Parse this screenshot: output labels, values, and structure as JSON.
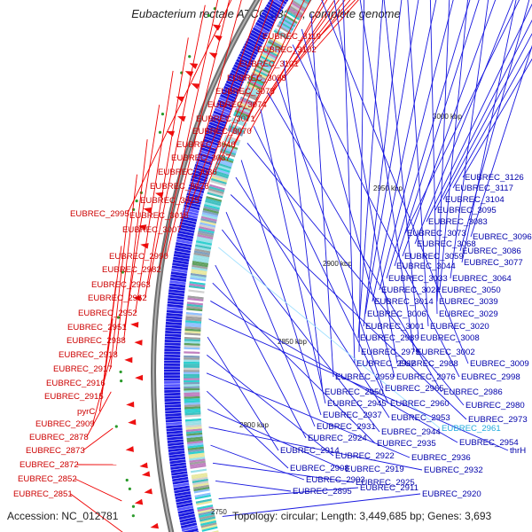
{
  "title": "Eubacterium rectale ATCC 33656, complete genome",
  "accession_text": "Accession: NC_012781",
  "summary_text": "Topology: circular; Length: 3,449,685 bp; Genes: 3,693",
  "kbp_labels": [
    "3000 kbp",
    "2950 kbp",
    "2900 kbp",
    "2850 kbp",
    "2800 kbp",
    "2750"
  ],
  "colors": {
    "red_label": "#cc0000",
    "blue_label": "#0000aa",
    "cyan_label": "#22aadd",
    "backbone": "#8a8a8a",
    "blue_arrows": "#1a1ae0",
    "red_arrows": "#ee1111"
  },
  "left_labels": [
    {
      "text": "EUBREC_3119",
      "color": "red"
    },
    {
      "text": "EUBREC_3102",
      "color": "red"
    },
    {
      "text": "EUBREC_3101",
      "color": "red"
    },
    {
      "text": "EUBREC_3098",
      "color": "red"
    },
    {
      "text": "EUBREC_3075",
      "color": "red"
    },
    {
      "text": "EUBREC_3074",
      "color": "red"
    },
    {
      "text": "EUBREC_3071",
      "color": "red"
    },
    {
      "text": "EUBREC_3070",
      "color": "red"
    },
    {
      "text": "EUBREC_3046",
      "color": "red"
    },
    {
      "text": "EUBREC_3037",
      "color": "red"
    },
    {
      "text": "EUBREC_3036",
      "color": "red"
    },
    {
      "text": "EUBREC_3026",
      "color": "red"
    },
    {
      "text": "EUBREC_3025",
      "color": "red"
    },
    {
      "text": "EUBREC_3016",
      "color": "red"
    },
    {
      "text": "EUBREC_2995",
      "color": "red"
    },
    {
      "text": "EUBREC_3007",
      "color": "red"
    },
    {
      "text": "EUBREC_2990",
      "color": "red"
    },
    {
      "text": "EUBREC_2982",
      "color": "red"
    },
    {
      "text": "EUBREC_2963",
      "color": "red"
    },
    {
      "text": "EUBREC_2962",
      "color": "red"
    },
    {
      "text": "EUBREC_2952",
      "color": "red"
    },
    {
      "text": "EUBREC_2951",
      "color": "red"
    },
    {
      "text": "EUBREC_2938",
      "color": "red"
    },
    {
      "text": "EUBREC_2918",
      "color": "red"
    },
    {
      "text": "EUBREC_2917",
      "color": "red"
    },
    {
      "text": "EUBREC_2916",
      "color": "red"
    },
    {
      "text": "EUBREC_2915",
      "color": "red"
    },
    {
      "text": "pyrC",
      "color": "red"
    },
    {
      "text": "EUBREC_2909",
      "color": "red"
    },
    {
      "text": "EUBREC_2878",
      "color": "red"
    },
    {
      "text": "EUBREC_2873",
      "color": "red"
    },
    {
      "text": "EUBREC_2872",
      "color": "red"
    },
    {
      "text": "EUBREC_2852",
      "color": "red"
    },
    {
      "text": "EUBREC_2851",
      "color": "red"
    }
  ],
  "right_labels": [
    {
      "text": "EUBREC_3126",
      "color": "blue"
    },
    {
      "text": "EUBREC_3117",
      "color": "blue"
    },
    {
      "text": "EUBREC_3104",
      "color": "blue"
    },
    {
      "text": "EUBREC_3095",
      "color": "blue"
    },
    {
      "text": "EUBREC_3083",
      "color": "blue"
    },
    {
      "text": "EUBREC_3073",
      "color": "blue"
    },
    {
      "text": "EUBREC_3096",
      "color": "blue"
    },
    {
      "text": "EUBREC_3068",
      "color": "blue"
    },
    {
      "text": "EUBREC_3086",
      "color": "blue"
    },
    {
      "text": "EUBREC_3059",
      "color": "blue"
    },
    {
      "text": "EUBREC_3077",
      "color": "blue"
    },
    {
      "text": "EUBREC_3044",
      "color": "blue"
    },
    {
      "text": "EUBREC_3033",
      "color": "blue"
    },
    {
      "text": "EUBREC_3064",
      "color": "blue"
    },
    {
      "text": "EUBREC_3024",
      "color": "blue"
    },
    {
      "text": "EUBREC_3050",
      "color": "blue"
    },
    {
      "text": "EUBREC_3014",
      "color": "blue"
    },
    {
      "text": "EUBREC_3039",
      "color": "blue"
    },
    {
      "text": "EUBREC_3006",
      "color": "blue"
    },
    {
      "text": "EUBREC_3029",
      "color": "blue"
    },
    {
      "text": "EUBREC_3001",
      "color": "blue"
    },
    {
      "text": "EUBREC_3020",
      "color": "blue"
    },
    {
      "text": "EUBREC_2989",
      "color": "blue"
    },
    {
      "text": "EUBREC_3008",
      "color": "blue"
    },
    {
      "text": "EUBREC_2979",
      "color": "blue"
    },
    {
      "text": "EUBREC_3002",
      "color": "blue"
    },
    {
      "text": "EUBREC_2967",
      "color": "blue"
    },
    {
      "text": "EUBREC_2988",
      "color": "blue"
    },
    {
      "text": "EUBREC_3009",
      "color": "blue"
    },
    {
      "text": "EUBREC_2959",
      "color": "blue"
    },
    {
      "text": "EUBREC_2976",
      "color": "blue"
    },
    {
      "text": "EUBREC_2998",
      "color": "blue"
    },
    {
      "text": "EUBREC_2950",
      "color": "blue"
    },
    {
      "text": "EUBREC_2965",
      "color": "blue"
    },
    {
      "text": "EUBREC_2986",
      "color": "blue"
    },
    {
      "text": "EUBREC_2945",
      "color": "blue"
    },
    {
      "text": "EUBREC_2960",
      "color": "blue"
    },
    {
      "text": "EUBREC_2980",
      "color": "blue"
    },
    {
      "text": "EUBREC_2937",
      "color": "blue"
    },
    {
      "text": "EUBREC_2953",
      "color": "blue"
    },
    {
      "text": "EUBREC_2973",
      "color": "blue"
    },
    {
      "text": "EUBREC_2931",
      "color": "blue"
    },
    {
      "text": "EUBREC_2944",
      "color": "blue"
    },
    {
      "text": "EUBREC_2961",
      "color": "cyan"
    },
    {
      "text": "EUBREC_2924",
      "color": "blue"
    },
    {
      "text": "EUBREC_2935",
      "color": "blue"
    },
    {
      "text": "EUBREC_2954",
      "color": "blue"
    },
    {
      "text": "thrH",
      "color": "blue"
    },
    {
      "text": "EUBREC_2914",
      "color": "blue"
    },
    {
      "text": "EUBREC_2922",
      "color": "blue"
    },
    {
      "text": "EUBREC_2936",
      "color": "blue"
    },
    {
      "text": "EUBREC_2908",
      "color": "blue"
    },
    {
      "text": "EUBREC_2919",
      "color": "blue"
    },
    {
      "text": "EUBREC_2932",
      "color": "blue"
    },
    {
      "text": "EUBREC_2903",
      "color": "blue"
    },
    {
      "text": "EUBREC_2925",
      "color": "blue"
    },
    {
      "text": "EUBREC_2895",
      "color": "blue"
    },
    {
      "text": "EUBREC_2911",
      "color": "blue"
    },
    {
      "text": "EUBREC_2920",
      "color": "blue"
    }
  ]
}
